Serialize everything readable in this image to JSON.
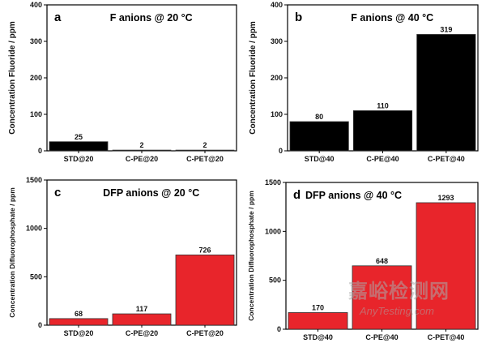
{
  "chart_data": [
    {
      "type": "bar",
      "panel": "a",
      "title": "F anions @ 20 °C",
      "ylabel": "Concentration Fluoride / ppm",
      "categories": [
        "STD@20",
        "C-PE@20",
        "C-PET@20"
      ],
      "values": [
        25,
        2,
        2
      ],
      "labels": [
        "25",
        "2",
        "2"
      ],
      "ylim": [
        0,
        400
      ],
      "yticks": [
        0,
        100,
        200,
        300,
        400
      ],
      "color": "#000000"
    },
    {
      "type": "bar",
      "panel": "b",
      "title": "F anions @ 40 °C",
      "ylabel": "Concentration Fluoride / ppm",
      "categories": [
        "STD@40",
        "C-PE@40",
        "C-PET@40"
      ],
      "values": [
        80,
        110,
        319
      ],
      "labels": [
        "80",
        "110",
        "319"
      ],
      "ylim": [
        0,
        400
      ],
      "yticks": [
        0,
        100,
        200,
        300,
        400
      ],
      "color": "#000000"
    },
    {
      "type": "bar",
      "panel": "c",
      "title": "DFP anions @ 20 °C",
      "ylabel": "Concentration Difluorophosphate / ppm",
      "categories": [
        "STD@20",
        "C-PE@20",
        "C-PET@20"
      ],
      "values": [
        68,
        117,
        726
      ],
      "labels": [
        "68",
        "117",
        "726"
      ],
      "ylim": [
        0,
        1500
      ],
      "yticks": [
        0,
        500,
        1000,
        1500
      ],
      "color": "#e8252b"
    },
    {
      "type": "bar",
      "panel": "d",
      "title": "DFP anions @ 40 °C",
      "ylabel": "Concentration Difluorophosphate / ppm",
      "categories": [
        "STD@40",
        "C-PE@40",
        "C-PET@40"
      ],
      "values": [
        170,
        648,
        1293
      ],
      "labels": [
        "170",
        "648",
        "1293"
      ],
      "ylim": [
        0,
        1500
      ],
      "yticks": [
        0,
        500,
        1000,
        1500
      ],
      "color": "#e8252b"
    }
  ],
  "watermark": {
    "cn": "嘉峪检测网",
    "en": "AnyTesting.com"
  }
}
